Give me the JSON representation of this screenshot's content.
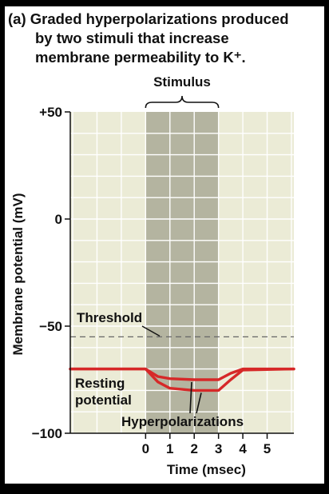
{
  "chart_data": {
    "type": "line",
    "title": "(a) Graded hyperpolarizations produced by two stimuli that increase membrane permeability to K⁺.",
    "title_lines": [
      "(a) Graded hyperpolarizations produced",
      "by two stimuli that increase",
      "membrane permeability to K⁺."
    ],
    "xlabel": "Time (msec)",
    "ylabel": "Membrane potential (mV)",
    "x_ticks": [
      0,
      1,
      2,
      3,
      4,
      5
    ],
    "y_ticks": [
      50,
      0,
      -50,
      -100
    ],
    "y_tick_labels": [
      "+50",
      "0",
      "−50",
      "−100"
    ],
    "xlim": [
      -3.1,
      6.1
    ],
    "ylim": [
      -100,
      50
    ],
    "grid": true,
    "stimulus": {
      "label": "Stimulus",
      "start": 0,
      "end": 3
    },
    "threshold": {
      "label": "Threshold",
      "value": -55
    },
    "resting_label": [
      "Resting",
      "potential"
    ],
    "hyperpolarization_label": "Hyperpolarizations",
    "series": [
      {
        "x": [
          -3.1,
          0,
          0.5,
          1,
          2,
          2.5,
          3,
          3.5,
          4,
          6.1
        ],
        "y": [
          -70,
          -70,
          -73.5,
          -74.5,
          -75,
          -75,
          -75,
          -72,
          -70,
          -70
        ]
      },
      {
        "x": [
          -3.1,
          0,
          0.5,
          1,
          2,
          2.5,
          3,
          3.5,
          4,
          6.1
        ],
        "y": [
          -70,
          -70,
          -76,
          -79,
          -80,
          -80,
          -80,
          -75,
          -70.5,
          -70
        ]
      }
    ],
    "colors": {
      "plot_bg": "#ebebd6",
      "grid": "#ffffff",
      "stimulus_band": "#b4b4a0",
      "series": "#d62828",
      "threshold": "#666666",
      "axis": "#111111"
    }
  }
}
